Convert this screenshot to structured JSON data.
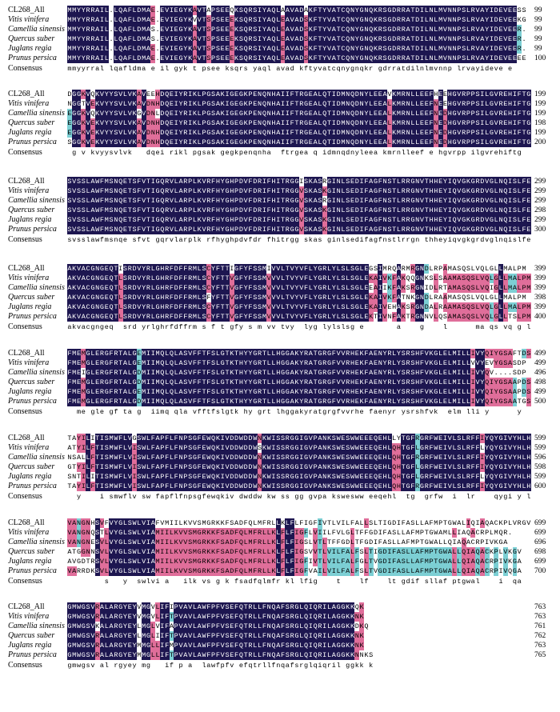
{
  "colors": {
    "identical": "#1d1650",
    "high": "#e06e9a",
    "partial": "#7ccfd4",
    "none": "#ffffff"
  },
  "labels": {
    "species": [
      "CL268_All",
      "Vitis vinifera",
      "Camellia sinensis",
      "Quercus suber",
      "Juglans regia",
      "Prunus persica"
    ],
    "consensus": "Consensus"
  },
  "blocks": [
    {
      "seqs": [
        "MMYYRRAIL.LQAFLDMAE.EVIEGYKAVTAPSEEQKSQRSIYAQLAAVADAKFTYVATCQNYGNQKRSGDRRATDILNLMVNNPSLRVAYIDEVEESS",
        "MMYYRRAIL.LQAFLDMAE.EVIEGYKVVTSPSEEEKSQRSIYAQLEAVADSKFTYVATCQNYGNQKRSGDRRATDILNLMVNNPSLRVAYIDEVEEKG",
        "MMYYRRAIL.LQAFLDMAS.EVIEGYKAVTSPSEEEKSQRSIYAQLEAVADSKFTYVATCQNYGNQKRSGDRRATDILNLMVNNPSLRVAYIDEVEER.",
        "MMYYRRAIL.LQAFLDMAS.EVIEGYKAVTSPSEEEKSQRSIYAQLEAVADSKFTYVATCQNYGNQKRSGDRRATDILNLMVNNPSLRVAYIDEVEER.",
        "MMYYRRAIL.LQAFLDMAE.EVIEGYKAVTSPSEEEKSQRSIYAQLEAVADSKFTYVATCQNYGNQKRSGDRRATDILNLMVNNPSLRVAYIDEVEER.",
        "MMYYRRAIL.LQAFLDMAE.EVIEGYKAVTSPSEEEKSQRSIYAQLEAVADSKFTYVATCQNYGNQKRSGDRRATDILNLMVNNPSLRVAYIDEVEEEE"
      ],
      "nums": [
        "99",
        "99",
        "99",
        "99",
        "99",
        "100"
      ],
      "consensus": "mmyyrral lqafldma e il gyk t psee ksqrs yaql avad kftyvatcqnygnqkr gdrratdilnlmvnnp lrvayideve e "
    },
    {
      "seqs": [
        "DGGKVQKVYYSVLVKAVEEHDQEIYRIKLPGSAKIGEGKPENQNHAIIFTRGEALQTIDMNQDNYLEEAVKMRNLLEEFHEEHGVRPPSILGVREHIFTG",
        "NGGTVEKVYYSVLVKAVDNHDQEIYRIKLPGSAKIGEGKPENQNHAIIFTRGEALQTIDMNQDNYLEEALKMRNLLEEFNEEHGVRPPSILGVREHIFTG",
        "EGGKVQKVYYSVLVKGVDNLDQEIYRIKLPGSAKIGEGKPENQNHAIIFTRGEALQTIDMNQDNYLEEALKMRNLLEEFNEDHGVRPPSILGVREHIFTG",
        "EGGKVEKVYYSVLVKAVDNHDQEIYRIKLPGSAKIGEGKPENQNHAIIFTRGEALQTIDMNQDNYLEEALKMRNLLEEFNEDHGVRPPSILGVREHIFTG",
        "EGGKVEKVYYSVLVKAVDNHDQEIYRIKLPGSAKIGEGKPENQNHAIIFTRGEALQTIDMNQDNYLEEALKMRNLLEEFNEDHGVRPPSILGVREHIFTG",
        "SGGKVEKVYYSVLVKAVDNHDQEIYRIKLPGSAKIGEGKPENQNHAIIFTRGEALQTIDMNQDNYLEEALKMRNLLEEFNEDHGVRPPSILGVREHIFTG"
      ],
      "nums": [
        "199",
        "199",
        "199",
        "198",
        "199",
        "200"
      ],
      "consensus": " g v kvyysvlvk   dqei rikl pgsak gegkpenqnha  ftrgea q idmnqdnyleea kmrnlleef e hgvrpp ilgvrehiftg"
    },
    {
      "seqs": [
        "SVSSLAWFMSNQETSFVTIGQRVLARPLKVRFHYGHPDVFDRIFHITRGGISKASRGINLSEDIFAGFNSTLRRGNVTHHEYIQVGKGRDVGLNQISLFE",
        "SVSSLAWFMSNQETSFVTIGQRVLARPLKVRFHYGHPDVFDRIFHITRGGVSKASKGINLSEDIFAGFNSTLRRGNVTHHEYIQVGKGRDVGLNQISLFE",
        "SVSSLAWFMSNQETSFVTIGQRVLARPLKVRFHYGHPDVFDRIFHITRGGVSKASRGINLSEDIFAGFNSTLRRGNVTHHEYIQVGKGRDVGLNQISLFE",
        "SVSSLAWFMSNQETSFVTIGQRVLARPLKVRFHYGHPDVFDRIFHITRGGVSKASKGINLSEDIFAGFNSTLRRGNVTHHEYIQVGKGRDVGLNQISLFE",
        "SVSSLAWFMSNQETSFVTIGQRVLARPLKVRFHYGHPDVFDRIFHITRGGVSKASKGINLSEDIFAGFNSTLRRGNVTHHEYIQVGKGRDVGLNQISLFE",
        "SVSSLAWFMSNQETSFVTIGQRVLARPLKVRFHYGHPDVFDRIFHITRGGVSKASKGINLSEDIFAGFNSTLRRGNVTHHEYIQVGKGRDVGLNQISLFE"
      ],
      "nums": [
        "299",
        "299",
        "299",
        "298",
        "299",
        "300"
      ],
      "consensus": "svsslawfmsnqe sfvt gqrvlarplk rfhyghpdvfdr fhitrgg skas ginlsedifagfnstlrrgn thheyiqvgkgrdvglnqislfe"
    },
    {
      "seqs": [
        "AKVACGNGEQTISRDVYRLGHRFDFFRMLSCYFTTIGFYFSSMIVVLTVYVFLYGRLYLSLSGLEGSIMRQARMRGNDLRPAMASQSLVQLGLLMALPM",
        "AKVACGNGEQTLSRDVYRLGHRFDFFRMLSCYFTTVGFYFSSMVVVLTVYVFLYGRLYLSLSGLEKAIVKFAKQQGNKSLSAAMASQSLVQLGLLMALPM",
        "AKVACGNGEQTLSRDVYRLGHRFDFFRMLSCYFTTVGFYFSSMVVVLTVYVFLYGRLYLSLSGLEEAIIKFAKSRGNIDLRTAMASQSLVQIGLLMALPM",
        "AKVACGNGEQTLSRDVYRLGHRFDFFRMLSFYFTTVGFYFSSMVVVLTVYVFLYGRLYLSLSGLEKAIVKFATNKGNDLRAAMASQSLVQLGLLMALPM",
        "AKVACGNGEQTLSRDVYRLGHRFDFFRMLSCYFTTVGFYFSSMVVVLTVYVFLYGRLYLSLSGLEKAIVEHAKSRGNDALRAAMASQSLVQLGLLMALPM",
        "AKVACGNGEQTLSRDVYRLGHRFDFFRMLSCYFTTVGFYFSSMVVVLTVYVFLYGRLYLSLSGLEKTIVNFAKTRGNNVLQSAMASQSLVQLGLLTSLPM"
      ],
      "nums": [
        "399",
        "399",
        "399",
        "398",
        "399",
        "400"
      ],
      "consensus": "akvacgngeq  srd yrlghrfdffrm s f t gfy s m vv tvy  lyg lylslsg e       a    g    l      ma qs vq g l  lpm"
    },
    {
      "seqs": [
        "FMEMGLERGFRTALGEMIIMQLQLASVFFTFSLGTKTHYYGRTLLHGGAKYRATGRGFVVRHEKFAENYRLYSRSHFVKGLELMILLIVYQIYGSAFTDS",
        "FMEMGLERGFRTALGEMIIMQLQLASVFFTFSLGTKTHYYGRTLLHGGAKYRATGRGFVVRHEKFAENYRLYSRSHFVKGLELMILLVVYEVYGSASDP",
        "FMEIGLERGFRTALGDMIIMQLQLASVFFTFSLGTKTHYYGRTLLHGGAKYRATGRGFVVRHEKFAENYRLYSRSHFVKGLELMILLIVYQV....SDP",
        "FMEMGLERGFRTALGDMIIMQLQLASVFFTFSLGTKTHYYGRTLLHGGAKYRATGRGFVVRHEKFAENYRLYSRSHFVKGLELMILLIVYQIYGSAAPDS",
        "FMEMGLERGFRTALGEMIIMQLQLASVFFTFSLGTKTHYYGRTLLHGGAKYRATGRGFVVRHEKFAENYRLYSRSHFVKGLELMILLIVYQIYGSAAPDS",
        "FMEMGLERGFRTALGDMIIMQLQLASVFFTFSLGTKTHYYGRTLLHGGAKYRATGRGFVVRHEKFAENYRLYSRSHFVKGLELMILLIVYQIYGSAATGS"
      ],
      "nums": [
        "499",
        "499",
        "496",
        "498",
        "499",
        "500"
      ],
      "consensus": "  me gle gf ta g  iimq qla vfftfslgtk hy grt lhggakyratgrgfvvrhe faenyr ysrshfvk  elm lli y      y  "
    },
    {
      "seqs": [
        "TAYILITISMWFLVGSWLFAPFLFNPSGFEWQKIVDDWDDWNKWISSRGGIGVPANKSWESWWEEEQEHLLYTGFRGRFWEIVLSLRFFIYQYGIVYHLH",
        "ATYILFTISMWFLVISWLFAPFLFNPSGFEWQKIVDDWDDWSKWISSRGGIGVPANKSWESWWEEEQEHLQHTGFLGRFWEIVLSLRFFLYQYGIVYHLH",
        "NSALLFTISMWFLVISWLFAPFLFNPSGFEWQKIVDDWDDWNKWISSRGGIGVPANKSWESWWEEEQEHLQHTGFRGRFWEIVLSLRFFIYQYGIVYHLH",
        "GTYILFTISMWFLVISWLFAPFLFNPSGFEWQKIVDDWDDWNKWISSRGGIGVPANKSWESWWEEEQEHLQHTGFLGRFWEIVLSLRFFIYQYGIVYHLH",
        "SNTILITISMWFLVISWLFAPFLFNPSGFEWQKIVDDWDDWNKWISSRGGIGVPANKSWESWWEEEQEHLQHTGFLGRFWEIVLSLRFFLYQYGIVYHLH",
        "TAYILFTISMWFLVISWLFAPFLFNPSGFEWQKIVDDWDDWNKWISSRGGIGVPANKSWESWWEEEQEHLQHTGFRGRFWEIVLSLRFFIYQYGIVYHLH"
      ],
      "nums": [
        "599",
        "599",
        "596",
        "598",
        "599",
        "600"
      ],
      "consensus": "  y    i smwflv sw fapflfnpsgfewqkiv dwddw kw ss gg gvpa kswesww eeqehl  tg  grfw  i  lr    qygi y l "
    },
    {
      "seqs": [
        "VANGNHSVFVYGLSWLVIAFVMIILKVVSMGRKKFSADFQLMFRLLKLFLFIGFIVTLVILFALLSLTIGDIFASLLAFMPTGWALIQIAQACKPLVRGV",
        "VANGNQSTLVYGLSWLVIAMIILKVVSMGRKKFSADFQLMFRLLKLFLFIGFLVIILFVLGLTFFGDIFASLLAFMPTGWAMLLIAQACRPLMQR.",
        "VANGNESVLVYGLSWLVIAMIILKVVSMGRKKFSADFQLMFRLLKLFLFIGSLVTLTFFGDLTFGDIFASLLAFMPTGWALLQIAQACRPIVKGA",
        "ATGGNNSVLVYGLSWLVIAMIILKVVSMGRKKFSADFQLMFRLLKLFLFIGSVVTLVILFALFSLTIGDIFASLLAFMPTGWALLQIAQACKPLVKGV",
        "AVGDTRSVLVYGLSWLVIAMIILKVVSMGRKKFSADFQLMFRLLKLFLFIGFIVTLVILFALFGLTVGDIFASLLAFMPTGWALLQIAQACRPIVKGA",
        "VARRDKSVLVYGLSWLVIAMIILKVVSMGRKKFSADFQLMFRLLKLFLFIGFVAILVILFALFSLTVGDIFASLLAFMPTGWALLQIAQACRPIVQGA"
      ],
      "nums": [
        "699",
        "699",
        "696",
        "698",
        "699",
        "700"
      ],
      "consensus": "        s   y  swlvi a   ilk vs g k fsadfqlmfr kl lfig    t    lf    lt gdif sllaf ptgwal    i  qa    p    k  "
    },
    {
      "seqs": [
        "GMWGSVRALARGYEYVMGVLIFIPVAVLAWFPFVSEFQTRLLFNQAFSRGLQIQRILAGGKKQK",
        "GMWGSVRALARGYEYVMGVLIFTPVAVLAWFPFVSEFQTRLLFNQAFSRGLQIQRILAGGKKNK",
        "GMWGSVKALARGYEYLMGLVIFAPVAVLAWFPFVSEFQTRLLFNQAFSRGLQIQRILAGGKKDKQ",
        "GMWGSVRALARGYEYLMGLIIFTPVAVLAWFPFVSEFQTRLLFNQAFSRGLQIQRILAGGKKNK",
        "GMWGSVRALARGYEYMMGLLIFMPVAVLAWFPFVSEFQTRLLFNQAFSRGLQIQRILAGGKKNK",
        "GMWGSVRALARGYEYMMGLLIFTPVAVLAWFPFVSEFQTRLLFNQAFSRGLQIQRILAGGKKNNKS"
      ],
      "nums": [
        "763",
        "763",
        "761",
        "762",
        "763",
        "765"
      ],
      "consensus": "gmwgsv al rgyey mg   if p a  lawfpfv efqtrllfnqafsrglqiqril ggkk k"
    }
  ]
}
